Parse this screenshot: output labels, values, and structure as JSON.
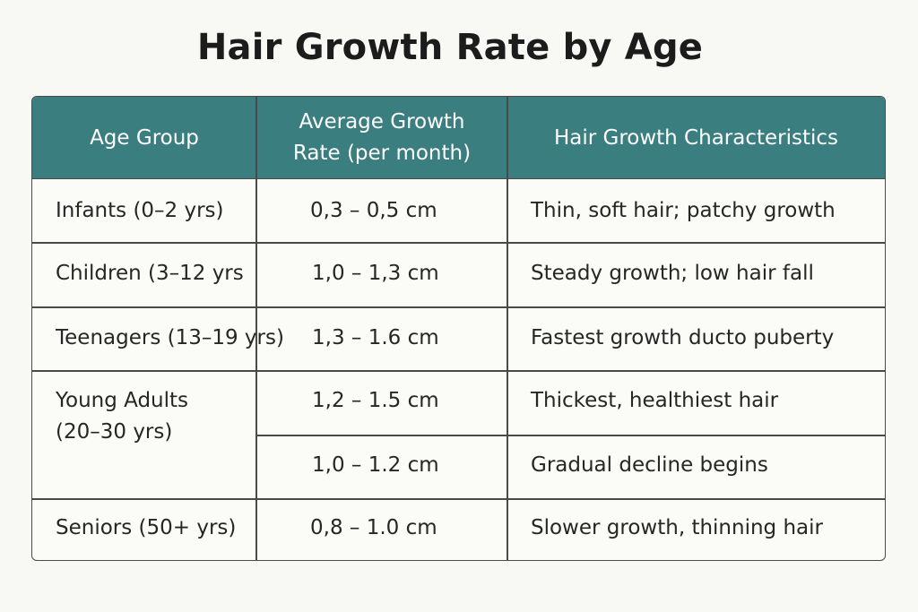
{
  "title": "Hair Growth Rate by Age",
  "header_color": "#3a7e80",
  "columns": [
    "Age Group",
    "Average Growth Rate (per month)",
    "Hair Growth Characteristics"
  ],
  "column_lines": {
    "col2_line1": "Average Growth",
    "col2_line2": "Rate (per month)"
  },
  "rows": [
    {
      "age": "Infants (0–2 yrs)",
      "rate": "0,3 – 0,5 cm",
      "characteristics": "Thin, soft hair; patchy growth"
    },
    {
      "age": "Children (3–12 yrs",
      "rate": "1,0 – 1,3 cm",
      "characteristics": "Steady growth; low hair fall"
    },
    {
      "age": "Teenagers (13–19 yrs)",
      "rate": "1,3 – 1.6 cm",
      "characteristics": "Fastest growth ducto puberty"
    },
    {
      "age_line1": "Young Adults",
      "age_line2": "(20–30 yrs)",
      "rate": "1,2 – 1.5 cm",
      "characteristics": "Thickest, healthiest hair"
    },
    {
      "age": "",
      "rate": "1,0 – 1.2 cm",
      "characteristics": "Gradual decline begins"
    },
    {
      "age": "Seniors (50+ yrs)",
      "rate": "0,8 – 1.0 cm",
      "characteristics": "Slower growth, thinning hair"
    }
  ]
}
